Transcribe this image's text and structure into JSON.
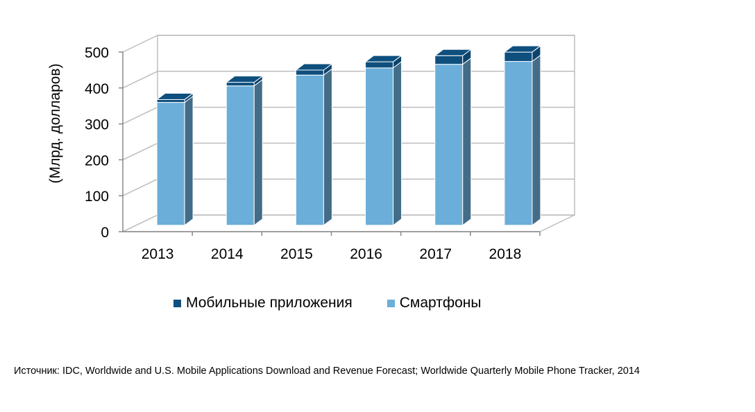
{
  "chart_data": {
    "type": "bar",
    "stacked": true,
    "three_d": true,
    "categories": [
      "2013",
      "2014",
      "2015",
      "2016",
      "2017",
      "2018"
    ],
    "series": [
      {
        "name": "Смартфоны",
        "color": "#6baed9",
        "values": [
          342,
          388,
          418,
          438,
          448,
          456
        ]
      },
      {
        "name": "Мобильные приложения",
        "color": "#0e4f7e",
        "values": [
          8,
          10,
          14,
          17,
          24,
          26
        ]
      }
    ],
    "ylabel": "(Млрд. долларов)",
    "yticks": [
      "0",
      "100",
      "200",
      "300",
      "400",
      "500"
    ],
    "ylim": [
      0,
      500
    ],
    "grid": true,
    "legend_position": "bottom",
    "legend_order": [
      "Мобильные приложения",
      "Смартфоны"
    ]
  },
  "source_note": "Источник: IDC, Worldwide and U.S. Mobile Applications Download and Revenue Forecast; Worldwide Quarterly Mobile Phone Tracker, 2014"
}
